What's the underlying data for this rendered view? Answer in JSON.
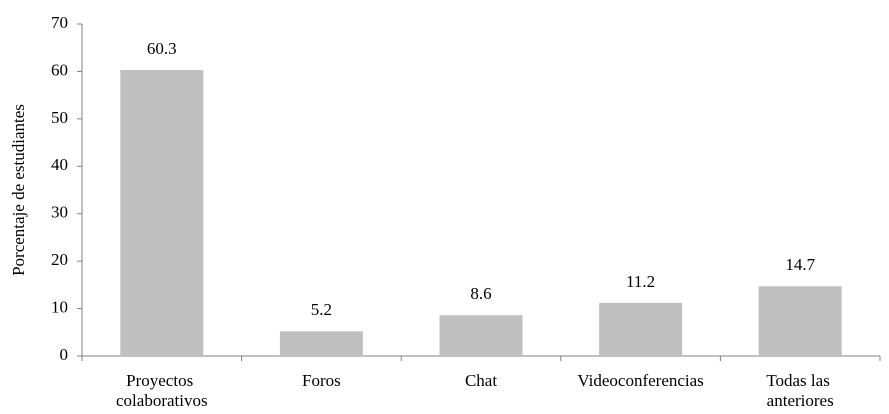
{
  "chart_data": {
    "type": "bar",
    "y_label": "Porcentaje de estudiantes",
    "categories": [
      "Proyectos colaborativos",
      "Foros",
      "Chat",
      "Videoconferencias",
      "Todas las anteriores"
    ],
    "values": [
      60.3,
      5.2,
      8.6,
      11.2,
      14.7
    ],
    "color": "#bfbfbf",
    "ylim": [
      0,
      70
    ],
    "yticks": [
      0,
      10,
      20,
      30,
      40,
      50,
      60,
      70
    ],
    "grid": false
  }
}
